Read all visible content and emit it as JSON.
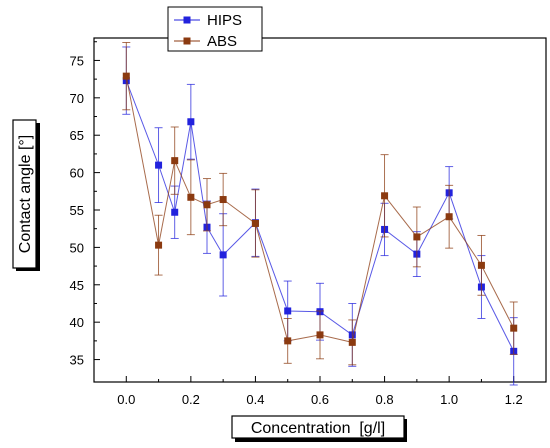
{
  "chart_data": {
    "type": "line",
    "xlabel": "Concentration  [g/l]",
    "ylabel": "Contact angle [°]",
    "xlim": [
      -0.1,
      1.3
    ],
    "ylim": [
      32,
      78
    ],
    "xticks": [
      "0.0",
      "0.2",
      "0.4",
      "0.6",
      "0.8",
      "1.0",
      "1.2"
    ],
    "xtick_values": [
      0.0,
      0.2,
      0.4,
      0.6,
      0.8,
      1.0,
      1.2
    ],
    "yticks": [
      "35",
      "40",
      "45",
      "50",
      "55",
      "60",
      "65",
      "70",
      "75"
    ],
    "ytick_values": [
      35,
      40,
      45,
      50,
      55,
      60,
      65,
      70,
      75
    ],
    "grid": false,
    "legend_position": "top-left",
    "x": [
      0.0,
      0.1,
      0.15,
      0.2,
      0.25,
      0.3,
      0.4,
      0.5,
      0.6,
      0.7,
      0.8,
      0.9,
      1.0,
      1.1,
      1.2
    ],
    "series": [
      {
        "name": "HIPS",
        "color": "#2222dd",
        "marker": "square",
        "values": [
          72.3,
          61.0,
          54.7,
          66.8,
          52.7,
          49.0,
          53.3,
          41.5,
          41.4,
          38.3,
          52.4,
          49.1,
          57.3,
          44.7,
          36.1
        ],
        "errors": [
          4.5,
          5.0,
          3.5,
          5.0,
          3.5,
          5.5,
          4.5,
          4.0,
          3.8,
          4.2,
          3.5,
          3.0,
          3.5,
          4.2,
          4.5
        ]
      },
      {
        "name": "ABS",
        "color": "#8b3a10",
        "marker": "square",
        "values": [
          72.9,
          50.3,
          61.6,
          56.7,
          55.7,
          56.4,
          53.2,
          37.5,
          38.3,
          37.3,
          56.9,
          51.4,
          54.1,
          47.6,
          39.2
        ],
        "errors": [
          4.5,
          4.0,
          4.5,
          5.0,
          3.5,
          3.5,
          4.5,
          3.0,
          3.2,
          3.0,
          5.5,
          4.0,
          4.2,
          4.0,
          3.5
        ]
      }
    ]
  }
}
